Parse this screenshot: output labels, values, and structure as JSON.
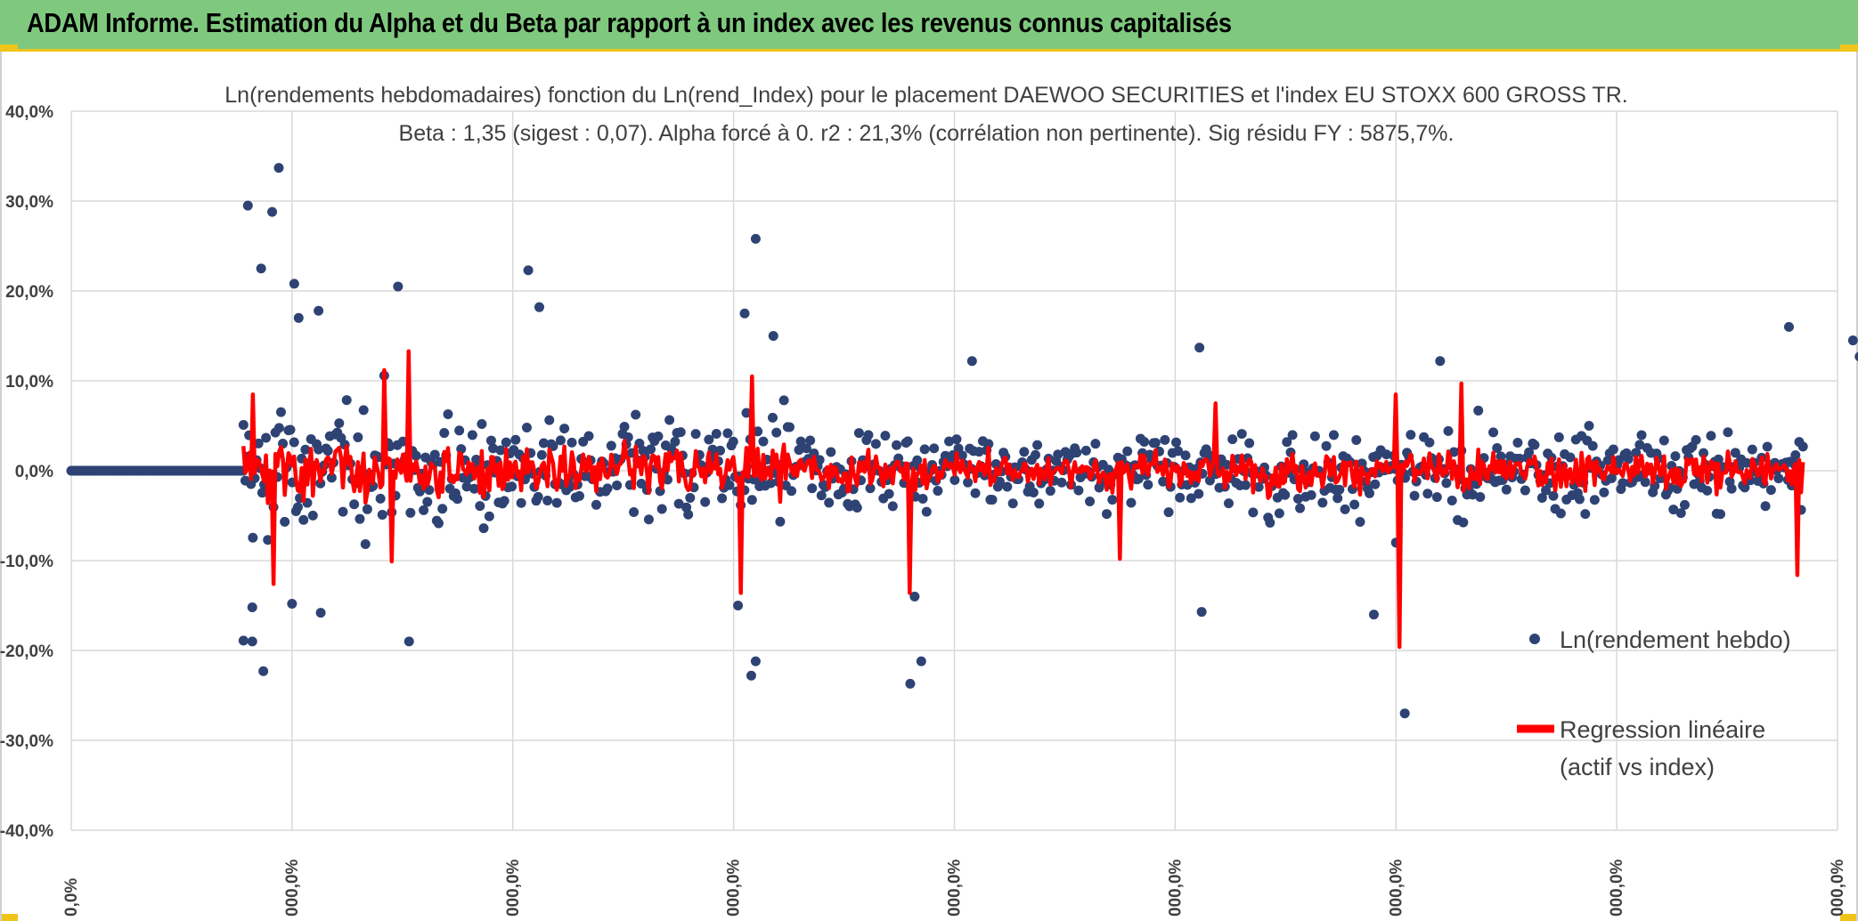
{
  "header": {
    "title": "ADAM Informe. Estimation du Alpha et du Beta par rapport à un index avec les revenus connus capitalisés",
    "background": "#7fc97f",
    "accent": "#f0c419"
  },
  "chart_data": {
    "type": "scatter",
    "title": "Ln(rendements hebdomadaires) fonction du Ln(rend_Index) pour le placement DAEWOO SECURITIES et l'index EU STOXX 600 GROSS TR.",
    "subtitle": "Beta : 1,35 (sigest : 0,07). Alpha forcé à 0. r2 : 21,3% (corrélation non pertinente). Sig résidu FY : 5875,7%.",
    "ylim": [
      -40,
      40
    ],
    "yticks": [
      "40,0%",
      "30,0%",
      "20,0%",
      "10,0%",
      "0,0%",
      "-10,0%",
      "-20,0%",
      "-30,0%",
      "-40,0%"
    ],
    "xticks": [
      "0,0%",
      "000,0%",
      "000,0%",
      "000,0%",
      "000,0%",
      "000,0%",
      "000,0%",
      "000,0%",
      "000,0%"
    ],
    "series": [
      {
        "name": "Ln(rendement hebdo)",
        "color": "#2e4374",
        "kind": "scatter"
      },
      {
        "name": "Regression linéaire",
        "name_line2": "(actif vs index)",
        "color": "#ff0000",
        "kind": "line"
      }
    ],
    "scatter_outliers": [
      {
        "x": 0.8,
        "y": 29.5
      },
      {
        "x": 0.94,
        "y": 33.7
      },
      {
        "x": 0.91,
        "y": 28.8
      },
      {
        "x": 0.86,
        "y": 22.5
      },
      {
        "x": 1.01,
        "y": 20.8
      },
      {
        "x": 1.03,
        "y": 17.0
      },
      {
        "x": 1.12,
        "y": 17.8
      },
      {
        "x": 1.48,
        "y": 20.5
      },
      {
        "x": 2.07,
        "y": 22.3
      },
      {
        "x": 2.12,
        "y": 18.2
      },
      {
        "x": 3.1,
        "y": 25.8
      },
      {
        "x": 3.05,
        "y": 17.5
      },
      {
        "x": 3.18,
        "y": 15.0
      },
      {
        "x": 4.08,
        "y": 12.2
      },
      {
        "x": 5.11,
        "y": 13.7
      },
      {
        "x": 6.2,
        "y": 12.2
      },
      {
        "x": 7.78,
        "y": 16.0
      },
      {
        "x": 8.07,
        "y": 14.5
      },
      {
        "x": 8.1,
        "y": 12.7
      },
      {
        "x": 0.78,
        "y": -18.9
      },
      {
        "x": 0.82,
        "y": -19.0
      },
      {
        "x": 0.87,
        "y": -22.3
      },
      {
        "x": 0.82,
        "y": -15.2
      },
      {
        "x": 1.0,
        "y": -14.8
      },
      {
        "x": 1.13,
        "y": -15.8
      },
      {
        "x": 1.53,
        "y": -19.0
      },
      {
        "x": 3.08,
        "y": -22.8
      },
      {
        "x": 3.1,
        "y": -21.2
      },
      {
        "x": 3.02,
        "y": -15.0
      },
      {
        "x": 3.8,
        "y": -23.7
      },
      {
        "x": 3.85,
        "y": -21.2
      },
      {
        "x": 3.82,
        "y": -14.0
      },
      {
        "x": 5.12,
        "y": -15.7
      },
      {
        "x": 5.9,
        "y": -16.0
      },
      {
        "x": 6.04,
        "y": -27.0
      },
      {
        "x": 6.0,
        "y": -8.0
      }
    ],
    "regression_spikes": [
      {
        "x": 0.82,
        "y": 8.5
      },
      {
        "x": 1.53,
        "y": 13.3
      },
      {
        "x": 1.42,
        "y": 11.2
      },
      {
        "x": 3.08,
        "y": 10.5
      },
      {
        "x": 6.3,
        "y": 9.7
      },
      {
        "x": 6.0,
        "y": 8.5
      },
      {
        "x": 5.18,
        "y": 7.5
      },
      {
        "x": 0.92,
        "y": -12.6
      },
      {
        "x": 1.45,
        "y": -10.1
      },
      {
        "x": 3.03,
        "y": -13.6
      },
      {
        "x": 3.8,
        "y": -13.6
      },
      {
        "x": 6.02,
        "y": -19.6
      },
      {
        "x": 7.82,
        "y": -11.6
      },
      {
        "x": 4.75,
        "y": -9.8
      }
    ],
    "legend": "right"
  }
}
